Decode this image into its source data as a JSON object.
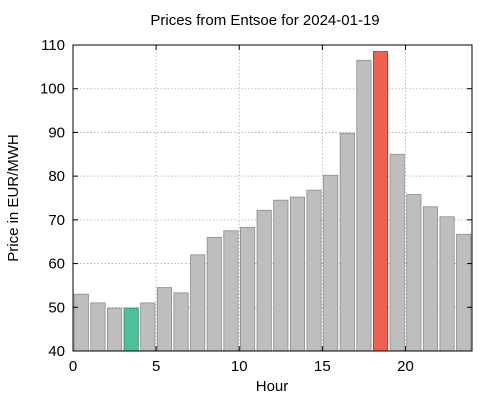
{
  "chart_data": {
    "type": "bar",
    "title": "Prices from Entsoe for 2024-01-19",
    "xlabel": "Hour",
    "ylabel": "Price in EUR/MWH",
    "x": [
      0,
      1,
      2,
      3,
      4,
      5,
      6,
      7,
      8,
      9,
      10,
      11,
      12,
      13,
      14,
      15,
      16,
      17,
      18,
      19,
      20,
      21,
      22,
      23
    ],
    "values": [
      53.0,
      51.0,
      49.8,
      49.8,
      51.0,
      54.5,
      53.3,
      62.0,
      66.0,
      67.5,
      68.3,
      72.2,
      74.5,
      75.2,
      76.8,
      80.2,
      89.8,
      106.5,
      108.5,
      85.0,
      75.8,
      73.0,
      70.7,
      66.7
    ],
    "xlim": [
      0,
      24
    ],
    "ylim": [
      40,
      110
    ],
    "xticks": [
      0,
      5,
      10,
      15,
      20
    ],
    "yticks": [
      40,
      50,
      60,
      70,
      80,
      90,
      100,
      110
    ],
    "grid": true,
    "colors": {
      "default": "#bebebe",
      "default_edge": "#8c8c8c",
      "min": "#4cc09a",
      "min_edge": "#2e8b6a",
      "max": "#f0604f",
      "max_edge": "#a33326"
    },
    "highlight": {
      "min_hour": 3,
      "max_hour": 18
    }
  }
}
